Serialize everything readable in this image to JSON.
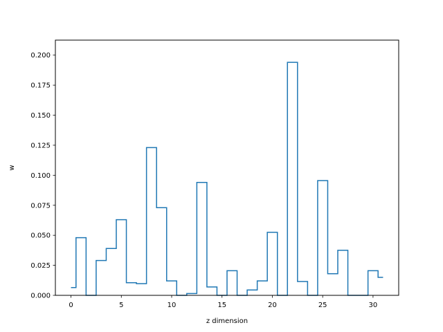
{
  "chart_data": {
    "type": "line",
    "drawstyle": "steps-mid",
    "title": "",
    "xlabel": "z dimension",
    "ylabel": "w",
    "xlim": [
      -1.55,
      32.55
    ],
    "ylim": [
      0,
      0.2125
    ],
    "x_ticks": [
      0,
      5,
      10,
      15,
      20,
      25,
      30
    ],
    "x_tick_labels": [
      "0",
      "5",
      "10",
      "15",
      "20",
      "25",
      "30"
    ],
    "y_ticks": [
      0,
      0.025,
      0.05,
      0.075,
      0.1,
      0.125,
      0.15,
      0.175,
      0.2
    ],
    "y_tick_labels": [
      "0.000",
      "0.025",
      "0.050",
      "0.075",
      "0.100",
      "0.125",
      "0.150",
      "0.175",
      "0.200"
    ],
    "grid": false,
    "series": [
      {
        "color": "#1f77b4",
        "x": [
          0,
          1,
          2,
          3,
          4,
          5,
          6,
          7,
          8,
          9,
          10,
          11,
          12,
          13,
          14,
          15,
          16,
          17,
          18,
          19,
          20,
          21,
          22,
          23,
          24,
          25,
          26,
          27,
          28,
          29,
          30,
          31
        ],
        "values": [
          0.0065,
          0.048,
          0.0,
          0.029,
          0.039,
          0.063,
          0.0105,
          0.0097,
          0.123,
          0.073,
          0.012,
          0.0,
          0.0015,
          0.094,
          0.007,
          0.0,
          0.0205,
          0.0,
          0.0045,
          0.012,
          0.0525,
          0.0,
          0.194,
          0.0115,
          0.0,
          0.0955,
          0.018,
          0.0375,
          0.0,
          0.0,
          0.0205,
          0.015
        ]
      }
    ]
  }
}
